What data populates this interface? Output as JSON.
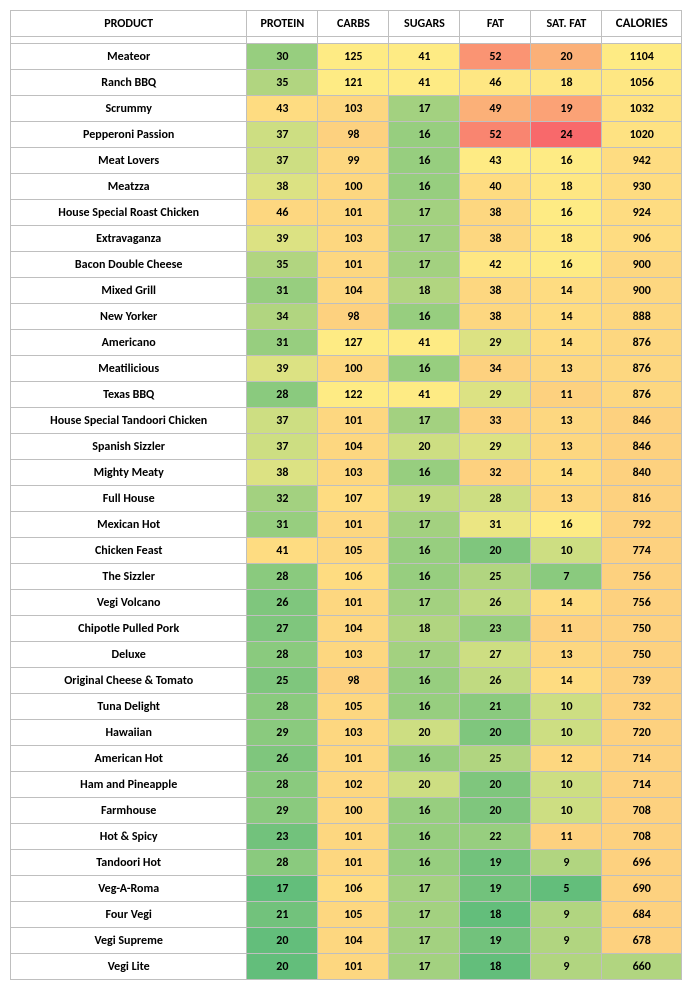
{
  "headers": {
    "product": "PRODUCT",
    "protein": "PROTEIN",
    "carbs": "CARBS",
    "sugars": "SUGARS",
    "fat": "FAT",
    "satfat": "SAT. FAT",
    "calories": "CALORIES"
  },
  "colors": {
    "g1": "#63be7b",
    "g2": "#72c27c",
    "g3": "#7fc67d",
    "g4": "#8aca7e",
    "g5": "#97ce7f",
    "g6": "#a3d180",
    "g7": "#b1d580",
    "g8": "#c0da81",
    "g9": "#cdde82",
    "g10": "#dce283",
    "g11": "#ebe683",
    "y1": "#feeb84",
    "y2": "#fee783",
    "y3": "#fee282",
    "y4": "#fedc81",
    "y5": "#fdd780",
    "y6": "#fdd17f",
    "y7": "#fcc87d",
    "y8": "#fcbf7b",
    "o1": "#fbb078",
    "o2": "#fba276",
    "o3": "#fa9473",
    "o4": "#f98570",
    "r1": "#f8696b"
  },
  "rows": [
    {
      "product": "Meateor",
      "protein": {
        "v": 30,
        "c": "g5"
      },
      "carbs": {
        "v": 125,
        "c": "y1"
      },
      "sugars": {
        "v": 41,
        "c": "y1"
      },
      "fat": {
        "v": 52,
        "c": "o3"
      },
      "satfat": {
        "v": 20,
        "c": "o1"
      },
      "calories": {
        "v": 1104,
        "c": "y1"
      }
    },
    {
      "product": "Ranch BBQ",
      "protein": {
        "v": 35,
        "c": "g7"
      },
      "carbs": {
        "v": 121,
        "c": "y1"
      },
      "sugars": {
        "v": 41,
        "c": "y1"
      },
      "fat": {
        "v": 46,
        "c": "y2"
      },
      "satfat": {
        "v": 18,
        "c": "y2"
      },
      "calories": {
        "v": 1056,
        "c": "y2"
      }
    },
    {
      "product": "Scrummy",
      "protein": {
        "v": 43,
        "c": "y4"
      },
      "carbs": {
        "v": 103,
        "c": "y5"
      },
      "sugars": {
        "v": 17,
        "c": "g6"
      },
      "fat": {
        "v": 49,
        "c": "o1"
      },
      "satfat": {
        "v": 19,
        "c": "o2"
      },
      "calories": {
        "v": 1032,
        "c": "y3"
      }
    },
    {
      "product": "Pepperoni Passion",
      "protein": {
        "v": 37,
        "c": "g9"
      },
      "carbs": {
        "v": 98,
        "c": "y6"
      },
      "sugars": {
        "v": 16,
        "c": "g5"
      },
      "fat": {
        "v": 52,
        "c": "o4"
      },
      "satfat": {
        "v": 24,
        "c": "r1"
      },
      "calories": {
        "v": 1020,
        "c": "y3"
      }
    },
    {
      "product": "Meat Lovers",
      "protein": {
        "v": 37,
        "c": "g9"
      },
      "carbs": {
        "v": 99,
        "c": "y5"
      },
      "sugars": {
        "v": 16,
        "c": "g5"
      },
      "fat": {
        "v": 43,
        "c": "y1"
      },
      "satfat": {
        "v": 16,
        "c": "y1"
      },
      "calories": {
        "v": 942,
        "c": "y4"
      }
    },
    {
      "product": "Meatzza",
      "protein": {
        "v": 38,
        "c": "g10"
      },
      "carbs": {
        "v": 100,
        "c": "y5"
      },
      "sugars": {
        "v": 16,
        "c": "g5"
      },
      "fat": {
        "v": 40,
        "c": "y4"
      },
      "satfat": {
        "v": 18,
        "c": "y2"
      },
      "calories": {
        "v": 930,
        "c": "y4"
      }
    },
    {
      "product": "House Special Roast Chicken",
      "protein": {
        "v": 46,
        "c": "y5"
      },
      "carbs": {
        "v": 101,
        "c": "y5"
      },
      "sugars": {
        "v": 17,
        "c": "g6"
      },
      "fat": {
        "v": 38,
        "c": "y5"
      },
      "satfat": {
        "v": 16,
        "c": "y1"
      },
      "calories": {
        "v": 924,
        "c": "y4"
      }
    },
    {
      "product": "Extravaganza",
      "protein": {
        "v": 39,
        "c": "g10"
      },
      "carbs": {
        "v": 103,
        "c": "y5"
      },
      "sugars": {
        "v": 17,
        "c": "g6"
      },
      "fat": {
        "v": 38,
        "c": "y5"
      },
      "satfat": {
        "v": 18,
        "c": "y2"
      },
      "calories": {
        "v": 906,
        "c": "y4"
      }
    },
    {
      "product": "Bacon Double Cheese",
      "protein": {
        "v": 35,
        "c": "g7"
      },
      "carbs": {
        "v": 101,
        "c": "y5"
      },
      "sugars": {
        "v": 17,
        "c": "g6"
      },
      "fat": {
        "v": 42,
        "c": "y2"
      },
      "satfat": {
        "v": 16,
        "c": "y1"
      },
      "calories": {
        "v": 900,
        "c": "y5"
      }
    },
    {
      "product": "Mixed Grill",
      "protein": {
        "v": 31,
        "c": "g5"
      },
      "carbs": {
        "v": 104,
        "c": "y5"
      },
      "sugars": {
        "v": 18,
        "c": "g7"
      },
      "fat": {
        "v": 38,
        "c": "y5"
      },
      "satfat": {
        "v": 14,
        "c": "y4"
      },
      "calories": {
        "v": 900,
        "c": "y5"
      }
    },
    {
      "product": "New Yorker",
      "protein": {
        "v": 34,
        "c": "g7"
      },
      "carbs": {
        "v": 98,
        "c": "y6"
      },
      "sugars": {
        "v": 16,
        "c": "g5"
      },
      "fat": {
        "v": 38,
        "c": "y5"
      },
      "satfat": {
        "v": 14,
        "c": "y4"
      },
      "calories": {
        "v": 888,
        "c": "y5"
      }
    },
    {
      "product": "Americano",
      "protein": {
        "v": 31,
        "c": "g5"
      },
      "carbs": {
        "v": 127,
        "c": "y1"
      },
      "sugars": {
        "v": 41,
        "c": "y1"
      },
      "fat": {
        "v": 29,
        "c": "g10"
      },
      "satfat": {
        "v": 14,
        "c": "y4"
      },
      "calories": {
        "v": 876,
        "c": "y5"
      }
    },
    {
      "product": "Meatilicious",
      "protein": {
        "v": 39,
        "c": "g10"
      },
      "carbs": {
        "v": 100,
        "c": "y5"
      },
      "sugars": {
        "v": 16,
        "c": "g5"
      },
      "fat": {
        "v": 34,
        "c": "y6"
      },
      "satfat": {
        "v": 13,
        "c": "y5"
      },
      "calories": {
        "v": 876,
        "c": "y5"
      }
    },
    {
      "product": "Texas BBQ",
      "protein": {
        "v": 28,
        "c": "g4"
      },
      "carbs": {
        "v": 122,
        "c": "y1"
      },
      "sugars": {
        "v": 41,
        "c": "y1"
      },
      "fat": {
        "v": 29,
        "c": "g10"
      },
      "satfat": {
        "v": 11,
        "c": "y6"
      },
      "calories": {
        "v": 876,
        "c": "y5"
      }
    },
    {
      "product": "House Special Tandoori Chicken",
      "protein": {
        "v": 37,
        "c": "g9"
      },
      "carbs": {
        "v": 101,
        "c": "y5"
      },
      "sugars": {
        "v": 17,
        "c": "g6"
      },
      "fat": {
        "v": 33,
        "c": "y6"
      },
      "satfat": {
        "v": 13,
        "c": "y5"
      },
      "calories": {
        "v": 846,
        "c": "y6"
      }
    },
    {
      "product": "Spanish Sizzler",
      "protein": {
        "v": 37,
        "c": "g9"
      },
      "carbs": {
        "v": 104,
        "c": "y5"
      },
      "sugars": {
        "v": 20,
        "c": "g9"
      },
      "fat": {
        "v": 29,
        "c": "g10"
      },
      "satfat": {
        "v": 13,
        "c": "y5"
      },
      "calories": {
        "v": 846,
        "c": "y6"
      }
    },
    {
      "product": "Mighty Meaty",
      "protein": {
        "v": 38,
        "c": "g10"
      },
      "carbs": {
        "v": 103,
        "c": "y5"
      },
      "sugars": {
        "v": 16,
        "c": "g5"
      },
      "fat": {
        "v": 32,
        "c": "y6"
      },
      "satfat": {
        "v": 14,
        "c": "y4"
      },
      "calories": {
        "v": 840,
        "c": "y6"
      }
    },
    {
      "product": "Full House",
      "protein": {
        "v": 32,
        "c": "g6"
      },
      "carbs": {
        "v": 107,
        "c": "y4"
      },
      "sugars": {
        "v": 19,
        "c": "g8"
      },
      "fat": {
        "v": 28,
        "c": "g9"
      },
      "satfat": {
        "v": 13,
        "c": "y5"
      },
      "calories": {
        "v": 816,
        "c": "y6"
      }
    },
    {
      "product": "Mexican Hot",
      "protein": {
        "v": 31,
        "c": "g5"
      },
      "carbs": {
        "v": 101,
        "c": "y5"
      },
      "sugars": {
        "v": 17,
        "c": "g6"
      },
      "fat": {
        "v": 31,
        "c": "g11"
      },
      "satfat": {
        "v": 16,
        "c": "y1"
      },
      "calories": {
        "v": 792,
        "c": "y6"
      }
    },
    {
      "product": "Chicken Feast",
      "protein": {
        "v": 41,
        "c": "y4"
      },
      "carbs": {
        "v": 105,
        "c": "y5"
      },
      "sugars": {
        "v": 16,
        "c": "g5"
      },
      "fat": {
        "v": 20,
        "c": "g3"
      },
      "satfat": {
        "v": 10,
        "c": "g9"
      },
      "calories": {
        "v": 774,
        "c": "y6"
      }
    },
    {
      "product": "The Sizzler",
      "protein": {
        "v": 28,
        "c": "g4"
      },
      "carbs": {
        "v": 106,
        "c": "y4"
      },
      "sugars": {
        "v": 16,
        "c": "g5"
      },
      "fat": {
        "v": 25,
        "c": "g7"
      },
      "satfat": {
        "v": 7,
        "c": "g4"
      },
      "calories": {
        "v": 756,
        "c": "y6"
      }
    },
    {
      "product": "Vegi Volcano",
      "protein": {
        "v": 26,
        "c": "g3"
      },
      "carbs": {
        "v": 101,
        "c": "y5"
      },
      "sugars": {
        "v": 17,
        "c": "g6"
      },
      "fat": {
        "v": 26,
        "c": "g8"
      },
      "satfat": {
        "v": 14,
        "c": "y4"
      },
      "calories": {
        "v": 756,
        "c": "y6"
      }
    },
    {
      "product": "Chipotle Pulled Pork",
      "protein": {
        "v": 27,
        "c": "g3"
      },
      "carbs": {
        "v": 104,
        "c": "y5"
      },
      "sugars": {
        "v": 18,
        "c": "g7"
      },
      "fat": {
        "v": 23,
        "c": "g5"
      },
      "satfat": {
        "v": 11,
        "c": "y6"
      },
      "calories": {
        "v": 750,
        "c": "y6"
      }
    },
    {
      "product": "Deluxe",
      "protein": {
        "v": 28,
        "c": "g4"
      },
      "carbs": {
        "v": 103,
        "c": "y5"
      },
      "sugars": {
        "v": 17,
        "c": "g6"
      },
      "fat": {
        "v": 27,
        "c": "g9"
      },
      "satfat": {
        "v": 13,
        "c": "y5"
      },
      "calories": {
        "v": 750,
        "c": "y6"
      }
    },
    {
      "product": "Original Cheese & Tomato",
      "protein": {
        "v": 25,
        "c": "g3"
      },
      "carbs": {
        "v": 98,
        "c": "y6"
      },
      "sugars": {
        "v": 16,
        "c": "g5"
      },
      "fat": {
        "v": 26,
        "c": "g8"
      },
      "satfat": {
        "v": 14,
        "c": "y4"
      },
      "calories": {
        "v": 739,
        "c": "y6"
      }
    },
    {
      "product": "Tuna Delight",
      "protein": {
        "v": 28,
        "c": "g4"
      },
      "carbs": {
        "v": 105,
        "c": "y5"
      },
      "sugars": {
        "v": 16,
        "c": "g5"
      },
      "fat": {
        "v": 21,
        "c": "g4"
      },
      "satfat": {
        "v": 10,
        "c": "g9"
      },
      "calories": {
        "v": 732,
        "c": "y6"
      }
    },
    {
      "product": "Hawaiian",
      "protein": {
        "v": 29,
        "c": "g4"
      },
      "carbs": {
        "v": 103,
        "c": "y5"
      },
      "sugars": {
        "v": 20,
        "c": "g9"
      },
      "fat": {
        "v": 20,
        "c": "g3"
      },
      "satfat": {
        "v": 10,
        "c": "g9"
      },
      "calories": {
        "v": 720,
        "c": "y6"
      }
    },
    {
      "product": "American Hot",
      "protein": {
        "v": 26,
        "c": "g3"
      },
      "carbs": {
        "v": 101,
        "c": "y5"
      },
      "sugars": {
        "v": 16,
        "c": "g5"
      },
      "fat": {
        "v": 25,
        "c": "g7"
      },
      "satfat": {
        "v": 12,
        "c": "y5"
      },
      "calories": {
        "v": 714,
        "c": "y6"
      }
    },
    {
      "product": "Ham and Pineapple",
      "protein": {
        "v": 28,
        "c": "g4"
      },
      "carbs": {
        "v": 102,
        "c": "y5"
      },
      "sugars": {
        "v": 20,
        "c": "g9"
      },
      "fat": {
        "v": 20,
        "c": "g3"
      },
      "satfat": {
        "v": 10,
        "c": "g9"
      },
      "calories": {
        "v": 714,
        "c": "y6"
      }
    },
    {
      "product": "Farmhouse",
      "protein": {
        "v": 29,
        "c": "g4"
      },
      "carbs": {
        "v": 100,
        "c": "y5"
      },
      "sugars": {
        "v": 16,
        "c": "g5"
      },
      "fat": {
        "v": 20,
        "c": "g3"
      },
      "satfat": {
        "v": 10,
        "c": "g9"
      },
      "calories": {
        "v": 708,
        "c": "y6"
      }
    },
    {
      "product": "Hot & Spicy",
      "protein": {
        "v": 23,
        "c": "g2"
      },
      "carbs": {
        "v": 101,
        "c": "y5"
      },
      "sugars": {
        "v": 16,
        "c": "g5"
      },
      "fat": {
        "v": 22,
        "c": "g5"
      },
      "satfat": {
        "v": 11,
        "c": "y6"
      },
      "calories": {
        "v": 708,
        "c": "y6"
      }
    },
    {
      "product": "Tandoori Hot",
      "protein": {
        "v": 28,
        "c": "g4"
      },
      "carbs": {
        "v": 101,
        "c": "y5"
      },
      "sugars": {
        "v": 16,
        "c": "g5"
      },
      "fat": {
        "v": 19,
        "c": "g2"
      },
      "satfat": {
        "v": 9,
        "c": "g7"
      },
      "calories": {
        "v": 696,
        "c": "y6"
      }
    },
    {
      "product": "Veg-A-Roma",
      "protein": {
        "v": 17,
        "c": "g1"
      },
      "carbs": {
        "v": 106,
        "c": "y4"
      },
      "sugars": {
        "v": 17,
        "c": "g6"
      },
      "fat": {
        "v": 19,
        "c": "g2"
      },
      "satfat": {
        "v": 5,
        "c": "g1"
      },
      "calories": {
        "v": 690,
        "c": "y6"
      }
    },
    {
      "product": "Four Vegi",
      "protein": {
        "v": 21,
        "c": "g2"
      },
      "carbs": {
        "v": 105,
        "c": "y5"
      },
      "sugars": {
        "v": 17,
        "c": "g6"
      },
      "fat": {
        "v": 18,
        "c": "g1"
      },
      "satfat": {
        "v": 9,
        "c": "g7"
      },
      "calories": {
        "v": 684,
        "c": "y6"
      }
    },
    {
      "product": "Vegi Supreme",
      "protein": {
        "v": 20,
        "c": "g1"
      },
      "carbs": {
        "v": 104,
        "c": "y5"
      },
      "sugars": {
        "v": 17,
        "c": "g6"
      },
      "fat": {
        "v": 19,
        "c": "g2"
      },
      "satfat": {
        "v": 9,
        "c": "g7"
      },
      "calories": {
        "v": 678,
        "c": "y6"
      }
    },
    {
      "product": "Vegi Lite",
      "protein": {
        "v": 20,
        "c": "g1"
      },
      "carbs": {
        "v": 101,
        "c": "y5"
      },
      "sugars": {
        "v": 17,
        "c": "g6"
      },
      "fat": {
        "v": 18,
        "c": "g1"
      },
      "satfat": {
        "v": 9,
        "c": "g7"
      },
      "calories": {
        "v": 660,
        "c": "g7"
      }
    }
  ]
}
